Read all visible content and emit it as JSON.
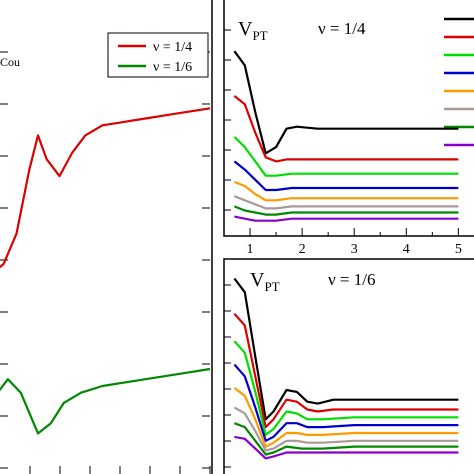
{
  "chart_data": [
    {
      "type": "line",
      "panel": "left",
      "labels": [
        "Cou"
      ],
      "legend_position": "top-right",
      "series": [
        {
          "name": "ν = 1/4",
          "color": "#dd0000",
          "x": [
            0.0,
            0.2,
            0.5,
            0.8,
            1.0,
            1.2,
            1.5,
            1.8,
            2.1,
            2.5,
            3.0,
            3.5,
            4.0,
            4.5,
            5.0
          ],
          "y": [
            0.6,
            0.62,
            0.71,
            0.9,
            1.0,
            0.93,
            0.88,
            0.95,
            1.0,
            1.03,
            1.04,
            1.05,
            1.06,
            1.07,
            1.08
          ]
        },
        {
          "name": "ν = 1/6",
          "color": "#008800",
          "x": [
            0.0,
            0.3,
            0.6,
            1.0,
            1.3,
            1.6,
            2.0,
            2.5,
            3.0,
            3.5,
            4.0,
            4.5,
            5.0
          ],
          "y": [
            0.23,
            0.28,
            0.24,
            0.12,
            0.15,
            0.21,
            0.24,
            0.26,
            0.27,
            0.28,
            0.29,
            0.3,
            0.31
          ]
        }
      ]
    },
    {
      "type": "line",
      "panel": "top-right",
      "title": "V",
      "title_sub": "PT",
      "annotation": "ν = 1/4",
      "xticks": [
        "1",
        "2",
        "3",
        "4",
        "5"
      ],
      "legend_colors": [
        "#000000",
        "#dd0000",
        "#00dd00",
        "#0000cc",
        "#ff9900",
        "#aa9999",
        "#008800",
        "#8800cc"
      ],
      "series": [
        {
          "color": "#000000",
          "x": [
            0.7,
            0.9,
            1.1,
            1.3,
            1.5,
            1.7,
            1.9,
            2.3,
            3.0,
            4.0,
            5.0
          ],
          "y": [
            1.0,
            0.93,
            0.7,
            0.5,
            0.53,
            0.62,
            0.63,
            0.62,
            0.62,
            0.62,
            0.62
          ]
        },
        {
          "color": "#dd0000",
          "x": [
            0.7,
            0.9,
            1.1,
            1.3,
            1.5,
            1.7,
            2.0,
            3.0,
            4.0,
            5.0
          ],
          "y": [
            0.78,
            0.74,
            0.6,
            0.48,
            0.46,
            0.47,
            0.47,
            0.47,
            0.47,
            0.47
          ]
        },
        {
          "color": "#00dd00",
          "x": [
            0.7,
            0.9,
            1.1,
            1.3,
            1.5,
            1.8,
            3.0,
            4.0,
            5.0
          ],
          "y": [
            0.58,
            0.53,
            0.46,
            0.39,
            0.39,
            0.4,
            0.4,
            0.4,
            0.4
          ]
        },
        {
          "color": "#0000cc",
          "x": [
            0.7,
            0.9,
            1.1,
            1.3,
            1.5,
            1.8,
            3.0,
            4.0,
            5.0
          ],
          "y": [
            0.46,
            0.42,
            0.37,
            0.32,
            0.32,
            0.33,
            0.33,
            0.33,
            0.33
          ]
        },
        {
          "color": "#ff9900",
          "x": [
            0.7,
            0.9,
            1.1,
            1.3,
            1.5,
            1.8,
            3.0,
            4.0,
            5.0
          ],
          "y": [
            0.36,
            0.34,
            0.3,
            0.27,
            0.27,
            0.28,
            0.28,
            0.28,
            0.28
          ]
        },
        {
          "color": "#aa9999",
          "x": [
            0.7,
            0.9,
            1.1,
            1.3,
            1.5,
            1.8,
            3.0,
            4.0,
            5.0
          ],
          "y": [
            0.29,
            0.27,
            0.25,
            0.23,
            0.23,
            0.24,
            0.24,
            0.24,
            0.24
          ]
        },
        {
          "color": "#008800",
          "x": [
            0.7,
            0.9,
            1.1,
            1.3,
            1.5,
            1.8,
            3.0,
            4.0,
            5.0
          ],
          "y": [
            0.24,
            0.22,
            0.21,
            0.2,
            0.2,
            0.21,
            0.21,
            0.21,
            0.21
          ]
        },
        {
          "color": "#8800cc",
          "x": [
            0.7,
            0.9,
            1.1,
            1.3,
            1.5,
            1.8,
            3.0,
            4.0,
            5.0
          ],
          "y": [
            0.19,
            0.18,
            0.17,
            0.17,
            0.17,
            0.18,
            0.18,
            0.18,
            0.18
          ]
        }
      ]
    },
    {
      "type": "line",
      "panel": "bottom-right",
      "title": "V",
      "title_sub": "PT",
      "annotation": "ν = 1/6",
      "series": [
        {
          "color": "#000000",
          "x": [
            0.7,
            0.9,
            1.1,
            1.3,
            1.45,
            1.7,
            1.9,
            2.1,
            2.3,
            2.6,
            3.0,
            4.0,
            5.0
          ],
          "y": [
            1.0,
            0.93,
            0.6,
            0.28,
            0.32,
            0.43,
            0.42,
            0.37,
            0.36,
            0.38,
            0.38,
            0.38,
            0.38
          ]
        },
        {
          "color": "#dd0000",
          "x": [
            0.7,
            0.9,
            1.1,
            1.3,
            1.45,
            1.7,
            1.9,
            2.1,
            2.3,
            2.6,
            3.0,
            4.0,
            5.0
          ],
          "y": [
            0.82,
            0.76,
            0.5,
            0.24,
            0.28,
            0.38,
            0.37,
            0.33,
            0.32,
            0.33,
            0.33,
            0.33,
            0.33
          ]
        },
        {
          "color": "#00dd00",
          "x": [
            0.7,
            0.9,
            1.1,
            1.3,
            1.45,
            1.7,
            1.9,
            2.1,
            2.4,
            3.0,
            4.0,
            5.0
          ],
          "y": [
            0.68,
            0.62,
            0.42,
            0.2,
            0.23,
            0.32,
            0.31,
            0.28,
            0.28,
            0.29,
            0.29,
            0.29
          ]
        },
        {
          "color": "#0000cc",
          "x": [
            0.7,
            0.9,
            1.1,
            1.3,
            1.45,
            1.7,
            1.9,
            2.1,
            2.4,
            3.0,
            4.0,
            5.0
          ],
          "y": [
            0.56,
            0.5,
            0.34,
            0.17,
            0.19,
            0.26,
            0.26,
            0.24,
            0.24,
            0.25,
            0.25,
            0.25
          ]
        },
        {
          "color": "#ff9900",
          "x": [
            0.7,
            0.9,
            1.1,
            1.3,
            1.45,
            1.7,
            1.9,
            2.1,
            2.4,
            3.0,
            4.0,
            5.0
          ],
          "y": [
            0.44,
            0.4,
            0.28,
            0.14,
            0.16,
            0.21,
            0.21,
            0.2,
            0.2,
            0.21,
            0.21,
            0.21
          ]
        },
        {
          "color": "#aa9999",
          "x": [
            0.7,
            0.9,
            1.1,
            1.3,
            1.45,
            1.7,
            1.9,
            2.1,
            2.4,
            3.0,
            4.0,
            5.0
          ],
          "y": [
            0.34,
            0.31,
            0.22,
            0.12,
            0.13,
            0.17,
            0.17,
            0.16,
            0.16,
            0.17,
            0.17,
            0.17
          ]
        },
        {
          "color": "#008800",
          "x": [
            0.7,
            0.9,
            1.1,
            1.3,
            1.45,
            1.7,
            2.0,
            2.4,
            3.0,
            4.0,
            5.0
          ],
          "y": [
            0.26,
            0.24,
            0.17,
            0.1,
            0.11,
            0.14,
            0.13,
            0.13,
            0.14,
            0.14,
            0.14
          ]
        },
        {
          "color": "#8800cc",
          "x": [
            0.7,
            0.9,
            1.1,
            1.3,
            1.45,
            1.7,
            2.0,
            2.4,
            3.0,
            4.0,
            5.0
          ],
          "y": [
            0.19,
            0.18,
            0.13,
            0.08,
            0.09,
            0.11,
            0.11,
            0.11,
            0.11,
            0.11,
            0.11
          ]
        }
      ]
    }
  ]
}
